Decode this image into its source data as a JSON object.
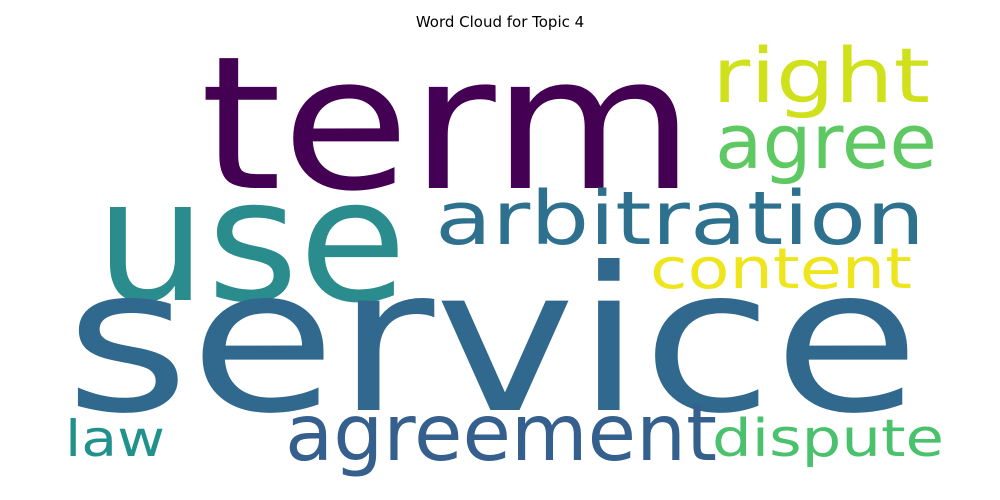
{
  "chart_data": {
    "type": "wordcloud",
    "title": "Word Cloud for Topic 4",
    "words": [
      {
        "text": "service",
        "color": "#31688e"
      },
      {
        "text": "term",
        "color": "#440154"
      },
      {
        "text": "use",
        "color": "#2a8c8c"
      },
      {
        "text": "arbitration",
        "color": "#2d718e"
      },
      {
        "text": "agreement",
        "color": "#355f8d"
      },
      {
        "text": "right",
        "color": "#d0e11c"
      },
      {
        "text": "agree",
        "color": "#5ec962"
      },
      {
        "text": "content",
        "color": "#efe51c"
      },
      {
        "text": "dispute",
        "color": "#4ac16d"
      },
      {
        "text": "law",
        "color": "#21918c"
      }
    ]
  }
}
